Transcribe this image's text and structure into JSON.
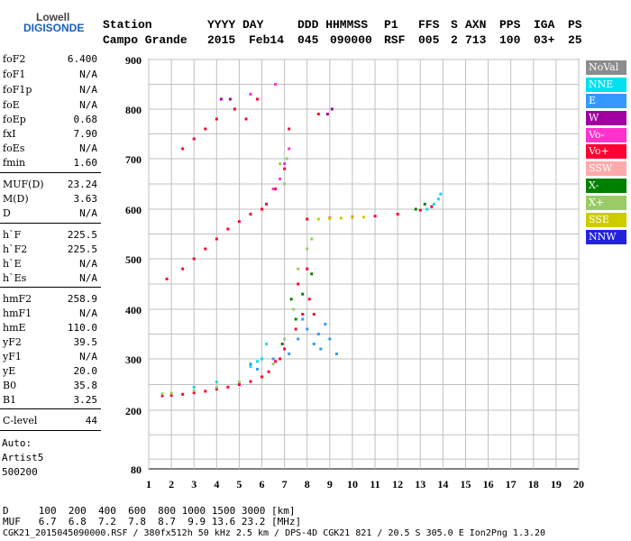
{
  "logo": {
    "line1": "Lowell",
    "line2": "DIGISONDE"
  },
  "header": {
    "label_station": "Station",
    "label_yyyy_day": "YYYY DAY",
    "label_ddd_hhmmss": "DDD HHMMSS",
    "label_p1": "P1",
    "label_ffs": "FFS",
    "label_s": "S",
    "label_axn": "AXN",
    "label_pps": "PPS",
    "label_iga": "IGA",
    "label_ps": "PS",
    "station": "Campo Grande",
    "year": "2015",
    "day": "Feb14",
    "ddd": "045",
    "hhmmss": "090000",
    "p1": "RSF",
    "ffs": "005",
    "s": "2",
    "axn": "713",
    "pps": "100",
    "iga": "03+",
    "ps": "25"
  },
  "params_top": [
    {
      "name": "foF2",
      "value": "6.400"
    },
    {
      "name": "foF1",
      "value": "N/A"
    },
    {
      "name": "foF1p",
      "value": "N/A"
    },
    {
      "name": "foE",
      "value": "N/A"
    },
    {
      "name": "foEp",
      "value": "0.68"
    },
    {
      "name": "fxI",
      "value": "7.90"
    },
    {
      "name": "foEs",
      "value": "N/A"
    },
    {
      "name": "fmin",
      "value": "1.60"
    }
  ],
  "params_muf": [
    {
      "name": "MUF(D)",
      "value": "23.24"
    },
    {
      "name": "M(D)",
      "value": "3.63"
    },
    {
      "name": "D",
      "value": "N/A"
    }
  ],
  "params_h": [
    {
      "name": "h`F",
      "value": "225.5"
    },
    {
      "name": "h`F2",
      "value": "225.5"
    },
    {
      "name": "h`E",
      "value": "N/A"
    },
    {
      "name": "h`Es",
      "value": "N/A"
    }
  ],
  "params_hm": [
    {
      "name": "hmF2",
      "value": "258.9"
    },
    {
      "name": "hmF1",
      "value": "N/A"
    },
    {
      "name": "hmE",
      "value": "110.0"
    },
    {
      "name": "yF2",
      "value": "39.5"
    },
    {
      "name": "yF1",
      "value": "N/A"
    },
    {
      "name": "yE",
      "value": "20.0"
    },
    {
      "name": "B0",
      "value": "35.8"
    },
    {
      "name": "B1",
      "value": "3.25"
    }
  ],
  "params_c": [
    {
      "name": "C-level",
      "value": "44"
    }
  ],
  "auto": {
    "l1": "Auto:",
    "l2": "Artist5",
    "l3": "500200"
  },
  "bottom": {
    "d_row": "D     100  200  400  600  800 1000 1500 3000 [km]",
    "muf_row": "MUF   6.7  6.8  7.2  7.8  8.7  9.9 13.6 23.2 [MHz]",
    "footer": "CGK21_2015045090000.RSF / 380fx512h 50 kHz 2.5 km / DPS-4D CGK21 821 / 20.5 S 305.0 E Ion2Png 1.3.20"
  },
  "legend": [
    {
      "label": "NoVal",
      "color": "#8c8c8c"
    },
    {
      "label": "NNE",
      "color": "#00e0f0"
    },
    {
      "label": "E",
      "color": "#3399ff"
    },
    {
      "label": "W",
      "color": "#a000a0"
    },
    {
      "label": "Vo-",
      "color": "#ff33cc"
    },
    {
      "label": "Vo+",
      "color": "#ff0033"
    },
    {
      "label": "SSW",
      "color": "#ffaaaa"
    },
    {
      "label": "X-",
      "color": "#008000"
    },
    {
      "label": "X+",
      "color": "#99cc66"
    },
    {
      "label": "SSE",
      "color": "#cccc00"
    },
    {
      "label": "NNW",
      "color": "#2222dd"
    }
  ],
  "chart_data": {
    "type": "scatter",
    "xlim": [
      1,
      20
    ],
    "ylim": [
      80,
      900
    ],
    "x_ticks": [
      1,
      2,
      3,
      4,
      5,
      6,
      7,
      8,
      9,
      10,
      11,
      12,
      13,
      14,
      15,
      16,
      17,
      18,
      19,
      20
    ],
    "y_ticks": [
      80,
      200,
      300,
      400,
      500,
      600,
      700,
      800,
      900
    ],
    "grid": true,
    "series": [
      {
        "name": "Vo+",
        "color": "#ff0033",
        "points": [
          [
            1.6,
            228
          ],
          [
            2,
            229
          ],
          [
            2.5,
            231
          ],
          [
            3,
            234
          ],
          [
            3.5,
            237
          ],
          [
            4,
            241
          ],
          [
            4.5,
            245
          ],
          [
            5,
            250
          ],
          [
            5.5,
            256
          ],
          [
            6,
            265
          ],
          [
            6.3,
            275
          ],
          [
            6.6,
            295
          ],
          [
            7,
            320
          ],
          [
            7.5,
            360
          ],
          [
            7.8,
            390
          ],
          [
            8.1,
            420
          ],
          [
            8.3,
            390
          ],
          [
            7.6,
            450
          ],
          [
            8,
            480
          ],
          [
            6.8,
            300
          ],
          [
            1.8,
            460
          ],
          [
            2.5,
            480
          ],
          [
            3,
            500
          ],
          [
            3.5,
            520
          ],
          [
            4,
            540
          ],
          [
            4.5,
            560
          ],
          [
            5,
            575
          ],
          [
            5.5,
            590
          ],
          [
            6,
            600
          ],
          [
            6.2,
            610
          ],
          [
            6.6,
            640
          ],
          [
            7,
            680
          ],
          [
            8,
            580
          ],
          [
            9,
            582
          ],
          [
            10,
            584
          ],
          [
            11,
            586
          ],
          [
            12,
            590
          ],
          [
            13,
            598
          ],
          [
            13.5,
            605
          ],
          [
            2.5,
            720
          ],
          [
            3,
            740
          ],
          [
            3.5,
            760
          ],
          [
            4,
            780
          ],
          [
            4.8,
            800
          ],
          [
            5.3,
            780
          ],
          [
            5.8,
            820
          ],
          [
            7.2,
            760
          ],
          [
            8.5,
            790
          ]
        ]
      },
      {
        "name": "E",
        "color": "#3399ff",
        "points": [
          [
            7.2,
            310
          ],
          [
            7.6,
            340
          ],
          [
            8,
            360
          ],
          [
            8.3,
            330
          ],
          [
            8.6,
            320
          ],
          [
            9,
            340
          ],
          [
            9.3,
            310
          ],
          [
            8.8,
            370
          ],
          [
            8.5,
            350
          ],
          [
            7.8,
            380
          ],
          [
            6.5,
            300
          ],
          [
            5.8,
            280
          ],
          [
            5.5,
            290
          ]
        ]
      },
      {
        "name": "NNE",
        "color": "#00e0f0",
        "points": [
          [
            13.6,
            610
          ],
          [
            13.8,
            620
          ],
          [
            13.9,
            630
          ],
          [
            13.3,
            600
          ],
          [
            6.2,
            330
          ],
          [
            6,
            300
          ],
          [
            5.8,
            295
          ],
          [
            5.5,
            285
          ],
          [
            4,
            255
          ],
          [
            3,
            245
          ]
        ]
      },
      {
        "name": "X+",
        "color": "#99cc66",
        "points": [
          [
            1.6,
            232
          ],
          [
            2,
            233
          ],
          [
            3,
            238
          ],
          [
            4,
            245
          ],
          [
            5,
            255
          ],
          [
            6.5,
            290
          ],
          [
            7,
            340
          ],
          [
            7.4,
            400
          ],
          [
            7.6,
            480
          ],
          [
            8,
            520
          ],
          [
            8.2,
            540
          ],
          [
            7,
            650
          ],
          [
            7.1,
            700
          ],
          [
            6.8,
            690
          ]
        ]
      },
      {
        "name": "X-",
        "color": "#008000",
        "points": [
          [
            7.3,
            420
          ],
          [
            7.8,
            430
          ],
          [
            8.2,
            470
          ],
          [
            7.5,
            380
          ],
          [
            6.9,
            330
          ],
          [
            12.8,
            600
          ],
          [
            13.2,
            610
          ]
        ]
      },
      {
        "name": "SSE",
        "color": "#cccc00",
        "points": [
          [
            8.5,
            580
          ],
          [
            9,
            581
          ],
          [
            9.5,
            582
          ],
          [
            10,
            583
          ],
          [
            10.5,
            584
          ]
        ]
      },
      {
        "name": "Vo-",
        "color": "#ff33cc",
        "points": [
          [
            6.5,
            640
          ],
          [
            6.8,
            660
          ],
          [
            7,
            690
          ],
          [
            7.2,
            720
          ],
          [
            5.5,
            830
          ],
          [
            6.6,
            850
          ]
        ]
      },
      {
        "name": "W",
        "color": "#a000a0",
        "points": [
          [
            8.9,
            790
          ],
          [
            9.1,
            800
          ],
          [
            4.2,
            820
          ],
          [
            4.6,
            820
          ]
        ]
      }
    ]
  }
}
